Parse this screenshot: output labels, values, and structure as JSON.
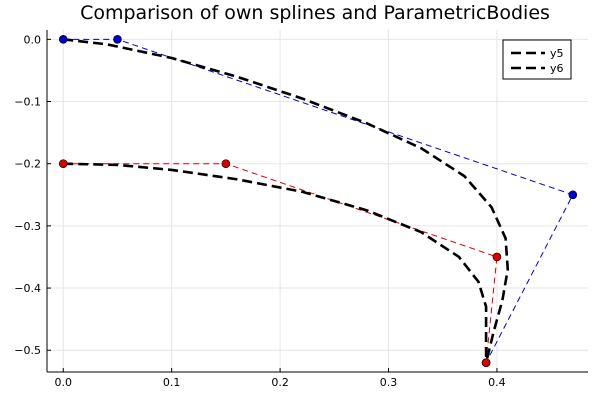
{
  "chart_data": {
    "type": "line",
    "title": "Comparison of own splines and ParametricBodies",
    "xlabel": "",
    "ylabel": "",
    "xlim": [
      -0.015,
      0.484
    ],
    "ylim": [
      -0.535,
      0.015
    ],
    "x_ticks": [
      0,
      0.1,
      0.2,
      0.3,
      0.4
    ],
    "x_tick_labels": [
      "0.0",
      "0.1",
      "0.2",
      "0.3",
      "0.4"
    ],
    "y_ticks": [
      0,
      -0.1,
      -0.2,
      -0.3,
      -0.4,
      -0.5
    ],
    "y_tick_labels": [
      "0.0",
      "−0.1",
      "−0.2",
      "−0.3",
      "−0.4",
      "−0.5"
    ],
    "grid": true,
    "legend_position": "top-right",
    "legend": [
      {
        "label": "y5",
        "color": "#000000",
        "style": "dashed"
      },
      {
        "label": "y6",
        "color": "#000000",
        "style": "dashed"
      }
    ],
    "series": [
      {
        "name": "y5",
        "kind": "curve",
        "color": "#000000",
        "style": "dashed",
        "points": [
          [
            0,
            0
          ],
          [
            0.04,
            -0.008
          ],
          [
            0.1,
            -0.03
          ],
          [
            0.16,
            -0.06
          ],
          [
            0.22,
            -0.095
          ],
          [
            0.28,
            -0.135
          ],
          [
            0.33,
            -0.175
          ],
          [
            0.37,
            -0.22
          ],
          [
            0.395,
            -0.27
          ],
          [
            0.408,
            -0.32
          ],
          [
            0.41,
            -0.37
          ],
          [
            0.405,
            -0.42
          ],
          [
            0.397,
            -0.47
          ],
          [
            0.39,
            -0.52
          ]
        ]
      },
      {
        "name": "y6",
        "kind": "curve",
        "color": "#000000",
        "style": "dashed",
        "points": [
          [
            0,
            -0.2
          ],
          [
            0.05,
            -0.202
          ],
          [
            0.1,
            -0.21
          ],
          [
            0.16,
            -0.225
          ],
          [
            0.22,
            -0.245
          ],
          [
            0.28,
            -0.275
          ],
          [
            0.33,
            -0.31
          ],
          [
            0.365,
            -0.35
          ],
          [
            0.383,
            -0.39
          ],
          [
            0.39,
            -0.43
          ],
          [
            0.39,
            -0.48
          ],
          [
            0.39,
            -0.52
          ]
        ]
      },
      {
        "name": "",
        "kind": "control-polygon",
        "color": "#0000cc",
        "style": "dashed",
        "points": [
          [
            0,
            0
          ],
          [
            0.05,
            0
          ],
          [
            0.47,
            -0.25
          ],
          [
            0.39,
            -0.52
          ]
        ]
      },
      {
        "name": "",
        "kind": "control-polygon",
        "color": "#dd0000",
        "style": "dashed",
        "points": [
          [
            0,
            -0.2
          ],
          [
            0.15,
            -0.2
          ],
          [
            0.4,
            -0.35
          ],
          [
            0.39,
            -0.52
          ]
        ]
      }
    ]
  }
}
